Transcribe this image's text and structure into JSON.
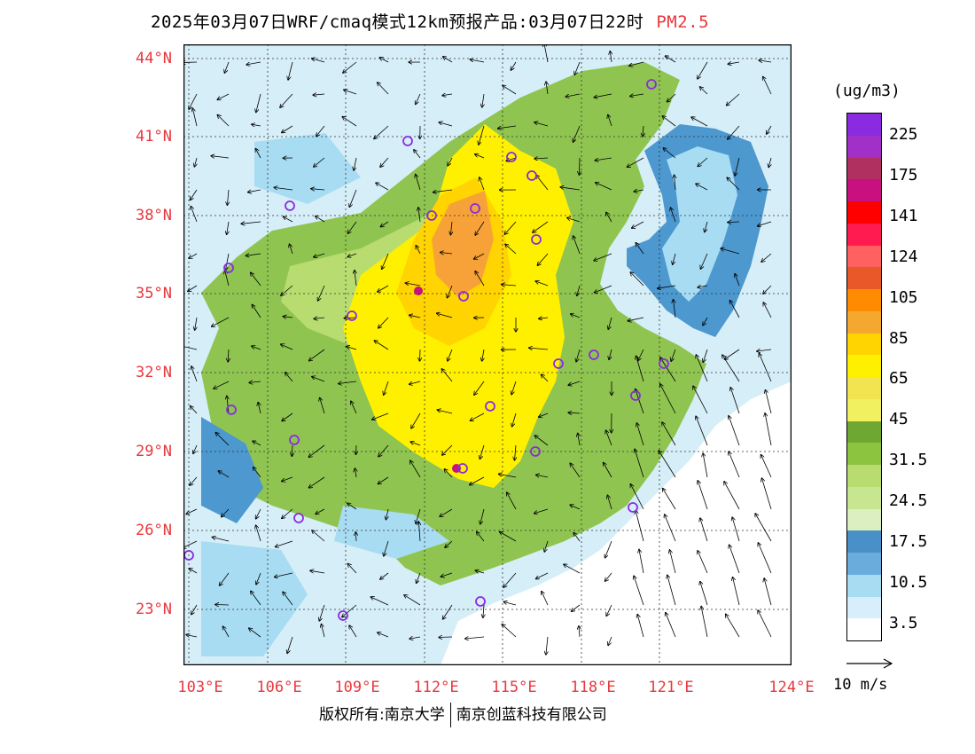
{
  "title": {
    "main": "2025年03月07日WRF/cmaq模式12km预报产品:03月07日22时",
    "variable": "PM2.5"
  },
  "map": {
    "lon_ticks": [
      "103°E",
      "106°E",
      "109°E",
      "112°E",
      "115°E",
      "118°E",
      "121°E",
      "124°E"
    ],
    "lat_ticks": [
      "44°N",
      "41°N",
      "38°N",
      "35°N",
      "32°N",
      "29°N",
      "26°N",
      "23°N"
    ],
    "colors": {
      "sea": "#ffffff",
      "low": "#d6eef8",
      "blue": "#4c98cf",
      "green": "#8fc450",
      "yellow": "#ffe600",
      "orange": "#f7a238",
      "purple_marker": "#8a2be2"
    }
  },
  "legend": {
    "unit": "(ug/m3)",
    "labels": [
      "225",
      "175",
      "141",
      "124",
      "105",
      "85",
      "65",
      "45",
      "31.5",
      "24.5",
      "17.5",
      "10.5",
      "3.5"
    ],
    "colors": [
      "#8a2be2",
      "#a030c8",
      "#b03060",
      "#c81080",
      "#ff0000",
      "#ff1a50",
      "#ff6060",
      "#e85828",
      "#ff8c00",
      "#f5a830",
      "#ffd400",
      "#fff000",
      "#f2e450",
      "#f0f060",
      "#6ea832",
      "#8cc440",
      "#b8dc70",
      "#c8e690",
      "#dcefc0",
      "#4a90c8",
      "#6aacdc",
      "#a8dcf2",
      "#d8eefa",
      "#ffffff"
    ],
    "vector_label": "10  m/s"
  },
  "footer": {
    "left": "版权所有:南京大学",
    "right": "南京创蓝科技有限公司"
  }
}
